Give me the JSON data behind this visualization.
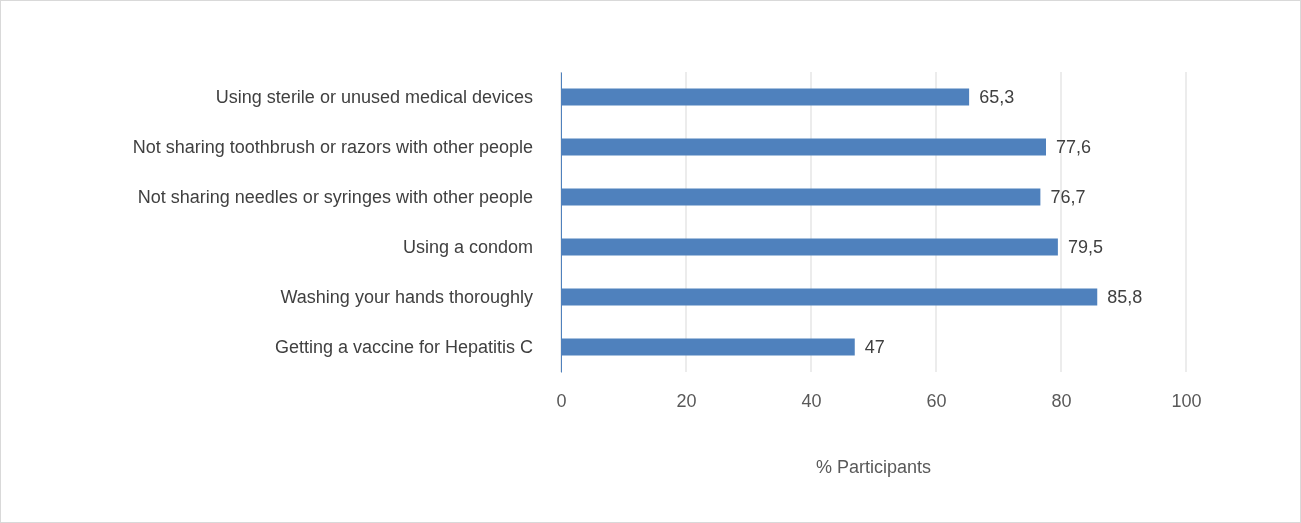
{
  "chart_data": {
    "type": "bar",
    "orientation": "horizontal",
    "xlabel": "% Participants",
    "categories": [
      "Using sterile or unused medical devices",
      "Not sharing toothbrush or razors with other people",
      "Not sharing needles or syringes with other people",
      "Using a condom",
      "Washing your hands thoroughly",
      "Getting a vaccine for Hepatitis C"
    ],
    "values": [
      65.3,
      77.6,
      76.7,
      79.5,
      85.8,
      47
    ],
    "value_labels": [
      "65,3",
      "77,6",
      "76,7",
      "79,5",
      "85,8",
      "47"
    ],
    "color": "#4f81bd",
    "xlim": [
      0,
      100
    ],
    "xticks": [
      0,
      20,
      40,
      60,
      80,
      100
    ],
    "grid": "x"
  }
}
